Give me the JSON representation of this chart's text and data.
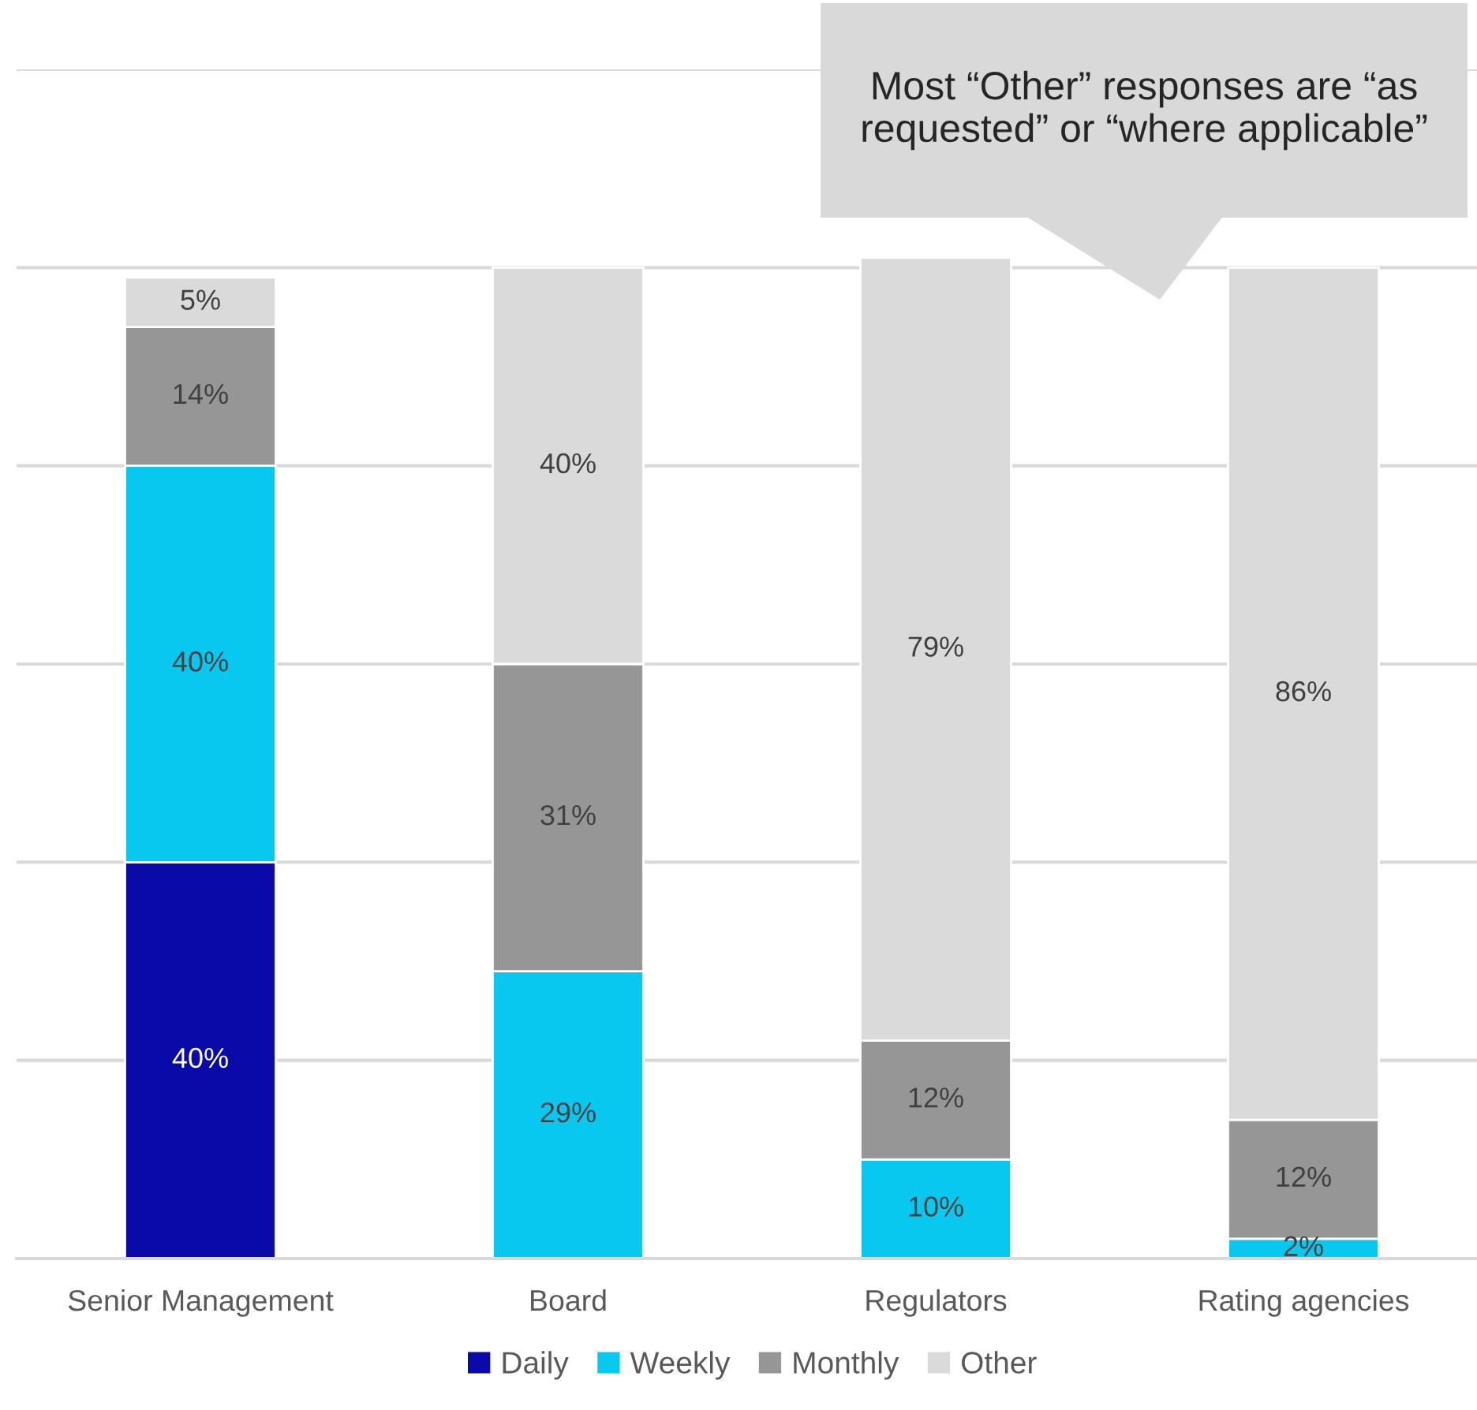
{
  "chart_data": {
    "type": "bar",
    "stacked": true,
    "categories": [
      "Senior Management",
      "Board",
      "Regulators",
      "Rating agencies"
    ],
    "series": [
      {
        "name": "Daily",
        "color": "#0a0aa8",
        "values": [
          40,
          0,
          0,
          0
        ],
        "value_labels": [
          "40%",
          null,
          null,
          null
        ]
      },
      {
        "name": "Weekly",
        "color": "#08c8f0",
        "values": [
          40,
          29,
          10,
          2
        ],
        "value_labels": [
          "40%",
          "29%",
          "10%",
          "2%"
        ]
      },
      {
        "name": "Monthly",
        "color": "#969696",
        "values": [
          14,
          31,
          12,
          12
        ],
        "value_labels": [
          "14%",
          "31%",
          "12%",
          "12%"
        ]
      },
      {
        "name": "Other",
        "color": "#dadada",
        "values": [
          5,
          40,
          79,
          86
        ],
        "value_labels": [
          "5%",
          "40%",
          "79%",
          "86%"
        ]
      }
    ],
    "ylim": [
      0,
      120
    ],
    "yticks": [
      {
        "value": 0,
        "label": null
      },
      {
        "value": 20,
        "label": null
      },
      {
        "value": 40,
        "label": null
      },
      {
        "value": 60,
        "label": null
      },
      {
        "value": 80,
        "label": null
      },
      {
        "value": 100,
        "label": null
      },
      {
        "value": 120,
        "label": null
      }
    ],
    "tick_labels": "x",
    "grid": "y",
    "legend": "bottom",
    "annotations": [
      "Most “Other” responses are “as requested” or “where applicable”"
    ]
  }
}
